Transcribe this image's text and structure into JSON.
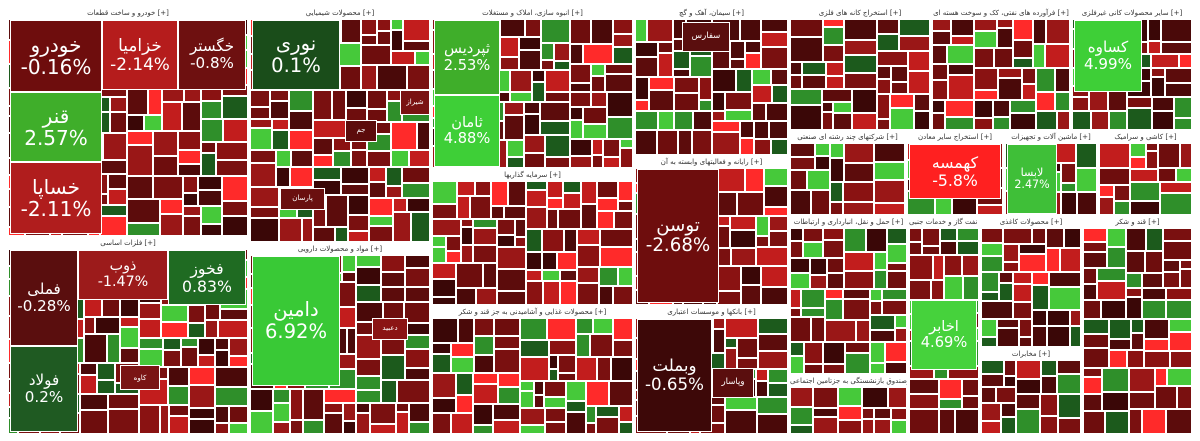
{
  "sectors": [
    {
      "title": "خودرو و ساخت قطعات [+]",
      "tiles": [
        {
          "name": "خودرو",
          "change": "-0.16%",
          "color": "#6e0d0d"
        },
        {
          "name": "خزامیا",
          "change": "-2.14%",
          "color": "#b51c1c"
        },
        {
          "name": "خگستر",
          "change": "-0.8%",
          "color": "#6e1010"
        },
        {
          "name": "قنر",
          "change": "2.57%",
          "color": "#3fae2a"
        },
        {
          "name": "خساپا",
          "change": "-2.11%",
          "color": "#b01d1d"
        }
      ]
    },
    {
      "title": "فلزات اساسی [+]",
      "tiles": [
        {
          "name": "فملی",
          "change": "-0.28%",
          "color": "#5a0e0e"
        },
        {
          "name": "فولاد",
          "change": "0.2%",
          "color": "#1f5a22"
        },
        {
          "name": "ذوب",
          "change": "-1.47%",
          "color": "#9c1b1b"
        },
        {
          "name": "فخوز",
          "change": "0.83%",
          "color": "#1f6b22"
        },
        {
          "name": "کاوه",
          "color": "#7a1414"
        }
      ]
    },
    {
      "title": "محصولات شیمیایی [+]",
      "tiles": [
        {
          "name": "نوری",
          "change": "0.1%",
          "color": "#1a4d1a"
        },
        {
          "name": "شیراز",
          "color": "#7a1212"
        },
        {
          "name": "جم",
          "color": "#5c0c0c"
        },
        {
          "name": "پارسان",
          "color": "#6a0f0f"
        }
      ]
    },
    {
      "title": "مواد و محصولات دارویی [+]",
      "tiles": [
        {
          "name": "دامین",
          "change": "6.92%",
          "color": "#39c936"
        },
        {
          "name": "دعبید",
          "color": "#8b1414"
        }
      ]
    },
    {
      "title": "انبوه سازی، املاک و مستغلات [+]",
      "tiles": [
        {
          "name": "ثپردیس",
          "change": "2.53%",
          "color": "#3fae2a"
        },
        {
          "name": "ثامان",
          "change": "4.88%",
          "color": "#3ecf37"
        }
      ]
    },
    {
      "title": "سرمایه گذاریها [+]",
      "tiles": []
    },
    {
      "title": "محصولات غذایی و آشامیدنی به جز قند و شکر [+]",
      "tiles": []
    },
    {
      "title": "سیمان، آهک و گچ [+]",
      "tiles": [
        {
          "name": "سفارس",
          "color": "#5a0e0e"
        }
      ]
    },
    {
      "title": "رایانه و فعالیتهای وابسته به آن [+]",
      "tiles": [
        {
          "name": "توسن",
          "change": "-2.68%",
          "color": "#6e0d0d"
        }
      ]
    },
    {
      "title": "بانکها و موسسات اعتباری [+]",
      "tiles": [
        {
          "name": "وبملت",
          "change": "-0.65%",
          "color": "#3d0808"
        },
        {
          "name": "وپاسار",
          "color": "#5a0e0e"
        }
      ]
    },
    {
      "title": "استخراج کانه های فلزی [+]",
      "tiles": []
    },
    {
      "title": "فرآورده های نفتی، کک و سوخت هسته ای [+]",
      "tiles": []
    },
    {
      "title": "سایر محصولات کانی غیرفلزی [+]",
      "tiles": [
        {
          "name": "کساوه",
          "change": "4.99%",
          "color": "#3ecf37"
        }
      ]
    },
    {
      "title": "شرکتهای چند رشته ای صنعتی [+]",
      "tiles": []
    },
    {
      "title": "استخراج سایر معادن [+]",
      "tiles": [
        {
          "name": "کهمسه",
          "change": "-5.8%",
          "color": "#ff2020"
        }
      ]
    },
    {
      "title": "ماشین آلات و تجهیزات [+]",
      "tiles": [
        {
          "name": "لابسا",
          "change": "2.47%",
          "color": "#3fbf38"
        }
      ]
    },
    {
      "title": "کاشی و سرامیک [+]",
      "tiles": []
    },
    {
      "title": "حمل و نقل، انبارداری و ارتباطات [+]",
      "tiles": []
    },
    {
      "title": "بیمه وصندوق بازنشستگی به جزتامین اجتماعی [+]",
      "tiles": []
    },
    {
      "title": "استخراج نفت گاز و خدمات جنبی [+]",
      "tiles": [
        {
          "name": "اخابر",
          "change": "4.69%",
          "color": "#46d23c"
        }
      ]
    },
    {
      "title": "محصولات کاغذی [+]",
      "tiles": []
    },
    {
      "title": "قند و شکر [+]",
      "tiles": []
    },
    {
      "title": "مخابرات [+]",
      "tiles": []
    }
  ]
}
